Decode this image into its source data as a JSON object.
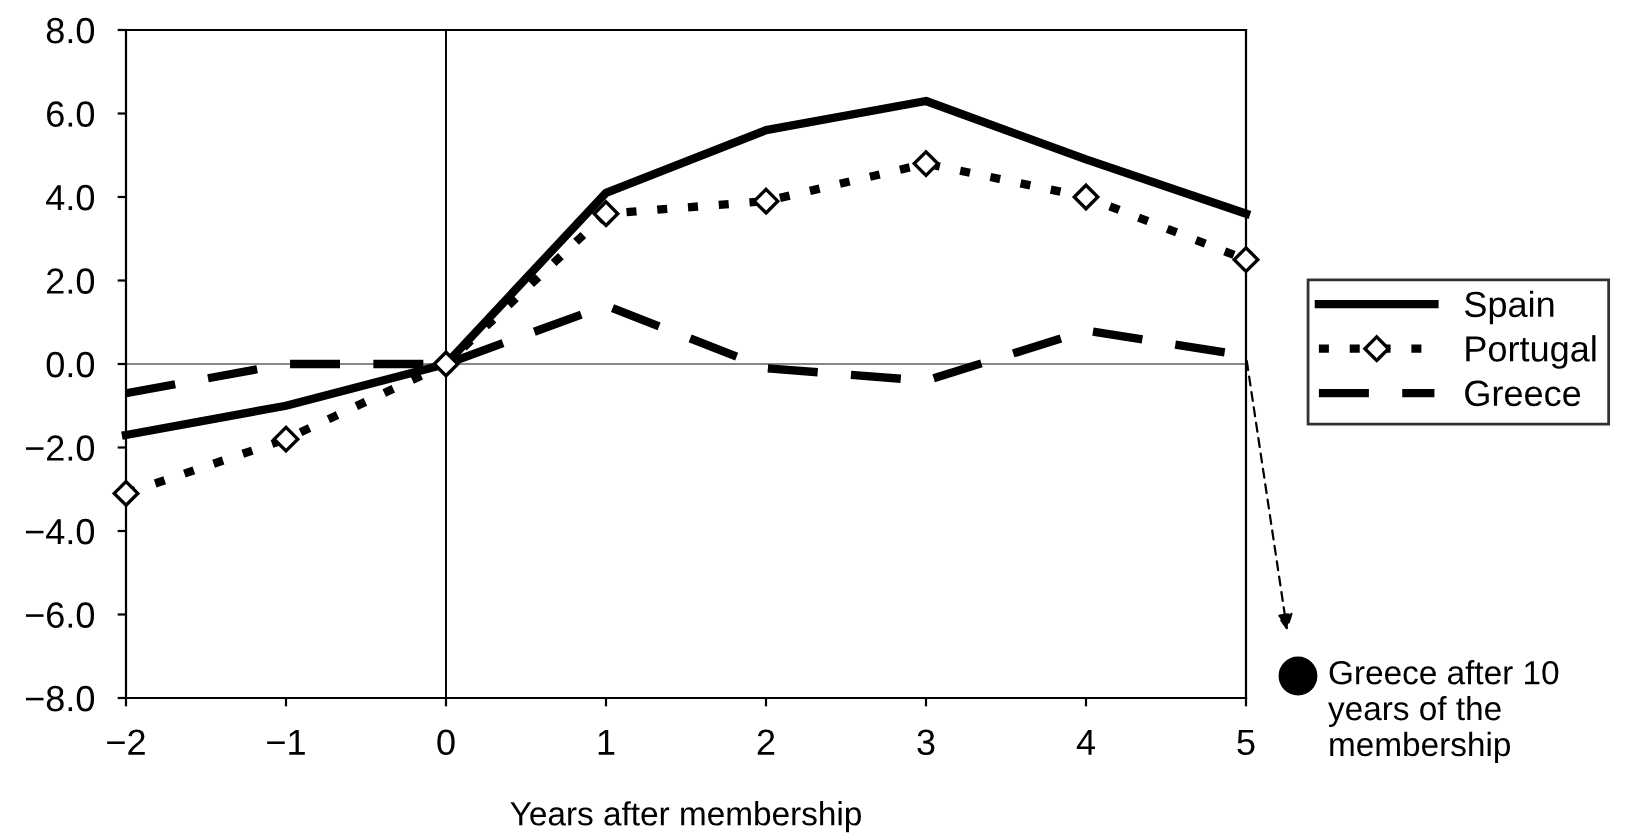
{
  "chart_data": {
    "type": "line",
    "xlabel": "Years after membership",
    "x": [
      -2,
      -1,
      0,
      1,
      2,
      3,
      4,
      5
    ],
    "xlim": [
      -2,
      5
    ],
    "xticks": [
      {
        "value": -2,
        "label": "−2"
      },
      {
        "value": -1,
        "label": "−1"
      },
      0,
      1,
      2,
      3,
      4,
      5
    ],
    "ylim": [
      -8,
      8
    ],
    "yticks": [
      {
        "value": -8,
        "label": "−8.0"
      },
      {
        "value": -6,
        "label": "−6.0"
      },
      {
        "value": -4,
        "label": "−4.0"
      },
      {
        "value": -2,
        "label": "−2.0"
      },
      {
        "value": 0,
        "label": "0.0"
      },
      {
        "value": 2,
        "label": "2.0"
      },
      {
        "value": 4,
        "label": "4.0"
      },
      {
        "value": 6,
        "label": "6.0"
      },
      {
        "value": 8,
        "label": "8.0"
      }
    ],
    "series": [
      {
        "name": "Spain",
        "color": "#000000",
        "line_style": "solid",
        "marker": "none",
        "values": [
          -1.7,
          -1.0,
          0,
          4.1,
          5.6,
          6.3,
          4.9,
          3.6
        ]
      },
      {
        "name": "Portugal",
        "color": "#000000",
        "line_style": "dotted",
        "marker": "diamond",
        "values": [
          -3.1,
          -1.8,
          0,
          3.6,
          3.9,
          4.8,
          4.0,
          2.5
        ]
      },
      {
        "name": "Greece",
        "color": "#000000",
        "line_style": "dashed",
        "marker": "none",
        "values": [
          -0.7,
          0.0,
          0,
          1.4,
          -0.1,
          -0.4,
          0.8,
          0.2
        ]
      }
    ],
    "ref_lines": [
      {
        "axis": "x",
        "value": 0,
        "color": "#000000"
      },
      {
        "axis": "y",
        "value": 0,
        "color": "#888888"
      }
    ],
    "annotations": [
      "Greece after 10\nyears of the\nmembership"
    ],
    "grid": false,
    "legend": "right"
  }
}
